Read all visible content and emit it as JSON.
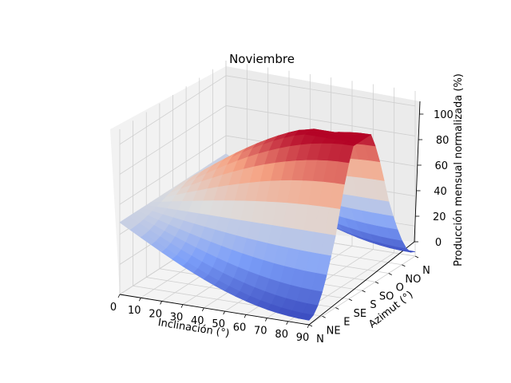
{
  "chart_data": {
    "type": "surface",
    "title": "Noviembre",
    "xlabel": "Inclinación (°)",
    "ylabel": "Azimut (°)",
    "zlabel": "Producción mensual normalizada (%)",
    "x_ticks": [
      "0",
      "10",
      "20",
      "30",
      "40",
      "50",
      "60",
      "70",
      "80",
      "90"
    ],
    "y_ticks": [
      "N",
      "NE",
      "E",
      "SE",
      "S",
      "SO",
      "O",
      "NO",
      "N"
    ],
    "z_ticks": [
      "0",
      "20",
      "40",
      "60",
      "80",
      "100"
    ],
    "xlim": [
      0,
      90
    ],
    "ylim": [
      0,
      360
    ],
    "zlim": [
      0,
      110
    ],
    "colormap": "coolwarm",
    "grid": true,
    "surface": {
      "flat_value": 48,
      "max_value": 100,
      "max_at": {
        "inclination": 60,
        "azimuth": 180
      },
      "min_value": 3,
      "min_at": {
        "inclination": 90,
        "azimuth": 0
      }
    }
  }
}
